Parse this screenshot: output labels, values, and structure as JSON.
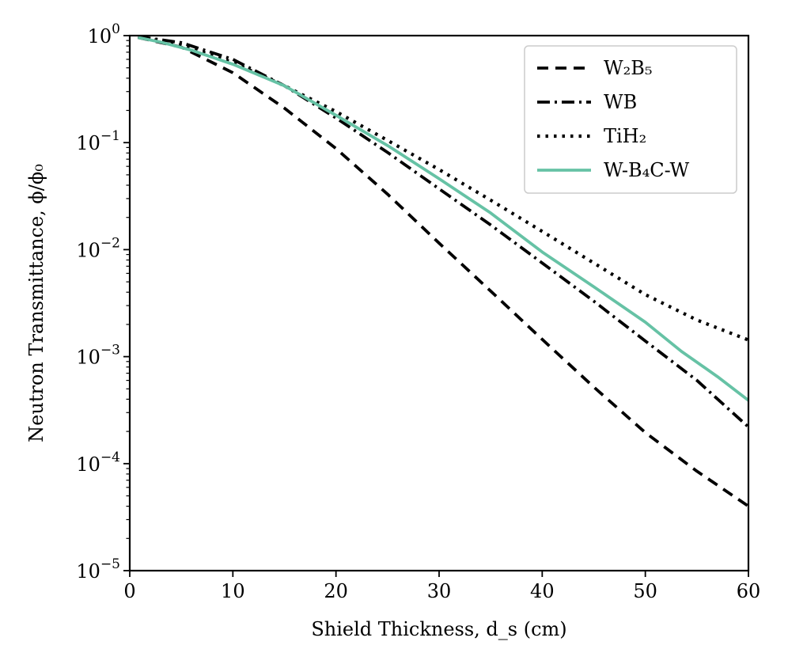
{
  "chart_data": {
    "type": "line",
    "title": "",
    "xlabel": "Shield Thickness, d_s (cm)",
    "ylabel": "Neutron Transmittance, ϕ/ϕ₀",
    "xlim": [
      0,
      60
    ],
    "ylim": [
      1e-05,
      1
    ],
    "yscale": "log",
    "grid": false,
    "legend_position": "top-right",
    "x_ticks": [
      {
        "value": 0,
        "label": "0"
      },
      {
        "value": 10,
        "label": "10"
      },
      {
        "value": 20,
        "label": "20"
      },
      {
        "value": 30,
        "label": "30"
      },
      {
        "value": 40,
        "label": "40"
      },
      {
        "value": 50,
        "label": "50"
      },
      {
        "value": 60,
        "label": "60"
      }
    ],
    "y_ticks": [
      {
        "exp": 0,
        "base": "10",
        "sup": "0"
      },
      {
        "exp": -1,
        "base": "10",
        "sup": "−1"
      },
      {
        "exp": -2,
        "base": "10",
        "sup": "−2"
      },
      {
        "exp": -3,
        "base": "10",
        "sup": "−3"
      },
      {
        "exp": -4,
        "base": "10",
        "sup": "−4"
      },
      {
        "exp": -5,
        "base": "10",
        "sup": "−5"
      }
    ],
    "series": [
      {
        "name": "W₂B₅",
        "style": "dashed",
        "color": "#000000",
        "x": [
          0.8,
          5,
          10,
          15,
          20,
          25,
          30,
          35,
          40,
          45,
          50,
          55,
          60
        ],
        "y": [
          0.96,
          0.78,
          0.45,
          0.21,
          0.088,
          0.033,
          0.0115,
          0.0041,
          0.00145,
          0.00052,
          0.000195,
          8.5e-05,
          4e-05
        ]
      },
      {
        "name": "WB",
        "style": "dashdot",
        "color": "#000000",
        "x": [
          0.8,
          5,
          10,
          15,
          20,
          25,
          30,
          35,
          40,
          45,
          50,
          55,
          60
        ],
        "y": [
          0.98,
          0.86,
          0.6,
          0.34,
          0.17,
          0.081,
          0.037,
          0.017,
          0.0075,
          0.0033,
          0.0014,
          0.0006,
          0.00022
        ]
      },
      {
        "name": "TiH₂",
        "style": "dotted",
        "color": "#000000",
        "x": [
          0.8,
          5,
          10,
          15,
          20,
          25,
          30,
          35,
          40,
          45,
          50,
          55,
          60
        ],
        "y": [
          0.97,
          0.82,
          0.56,
          0.34,
          0.195,
          0.105,
          0.056,
          0.029,
          0.0148,
          0.0075,
          0.0038,
          0.0022,
          0.00143
        ]
      },
      {
        "name": "W-B₄C-W",
        "style": "solid",
        "color": "#66c2a5",
        "x": [
          0.8,
          3,
          6,
          10,
          15,
          20,
          25,
          30,
          35,
          40,
          45,
          50,
          53.5,
          57,
          60
        ],
        "y": [
          0.96,
          0.87,
          0.73,
          0.54,
          0.34,
          0.18,
          0.094,
          0.046,
          0.022,
          0.0095,
          0.0045,
          0.0021,
          0.00112,
          0.00065,
          0.00039
        ]
      }
    ]
  }
}
